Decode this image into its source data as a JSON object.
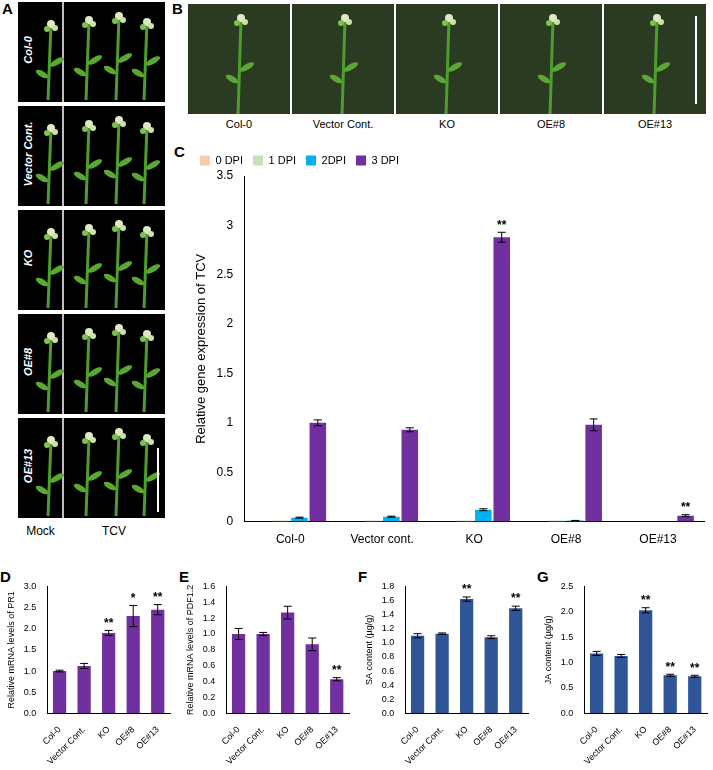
{
  "photo_panels": [
    {
      "panel": "A",
      "rows": [
        "Col-0",
        "Vector Cont.",
        "KO",
        "OE#8",
        "OE#13"
      ],
      "columns": [
        "Mock",
        "TCV"
      ]
    },
    {
      "panel": "B",
      "captions": [
        "Col-0",
        "Vector Cont.",
        "KO",
        "OE#8",
        "OE#13"
      ]
    }
  ],
  "chart_data": [
    {
      "panel": "C",
      "type": "bar",
      "categories": [
        "Col-0",
        "Vector cont.",
        "KO",
        "OE#8",
        "OE#13"
      ],
      "ylabel": "Relative gene expression of TCV",
      "ylim": [
        0,
        3.5
      ],
      "yticks": [
        0,
        0.5,
        1,
        1.5,
        2,
        2.5,
        3,
        3.5
      ],
      "grid": false,
      "legend": "upper left",
      "series": [
        {
          "name": "0 DPI",
          "color": "#f8cbad",
          "values": [
            0,
            0,
            0,
            0,
            0
          ],
          "errors": [
            0,
            0,
            0,
            0,
            0
          ]
        },
        {
          "name": "1 DPI",
          "color": "#c5e0b4",
          "values": [
            0.01,
            0.01,
            0.01,
            0.01,
            0
          ],
          "errors": [
            0,
            0,
            0,
            0,
            0
          ]
        },
        {
          "name": "2DPI",
          "color": "#00b0f0",
          "values": [
            0.04,
            0.05,
            0.12,
            0.01,
            0
          ],
          "errors": [
            0.005,
            0.005,
            0.01,
            0.002,
            0
          ]
        },
        {
          "name": "3 DPI",
          "color": "#7030a0",
          "values": [
            1.0,
            0.93,
            2.88,
            0.98,
            0.06
          ],
          "errors": [
            0.03,
            0.02,
            0.05,
            0.06,
            0.01
          ]
        }
      ],
      "annotations": [
        {
          "series": "3 DPI",
          "category": "KO",
          "text": "**"
        },
        {
          "series": "3 DPI",
          "category": "OE#13",
          "text": "**"
        }
      ]
    },
    {
      "panel": "D",
      "type": "bar",
      "categories": [
        "Col-0",
        "Vector Cont.",
        "KO",
        "OE#8",
        "OE#13"
      ],
      "ylabel": "Relative mRNA levels of PR1",
      "ylim": [
        0,
        3
      ],
      "yticks": [
        {
          "value": 0,
          "label": "0.0"
        },
        0.5,
        {
          "value": 1,
          "label": "1.0"
        },
        1.5,
        {
          "value": 2,
          "label": "2.0"
        },
        2.5,
        {
          "value": 3,
          "label": "3.0"
        }
      ],
      "grid": false,
      "color": "#7030a0",
      "values": [
        1.0,
        1.12,
        1.9,
        2.3,
        2.45
      ],
      "errors": [
        0.02,
        0.06,
        0.06,
        0.25,
        0.12
      ],
      "annotations": [
        {
          "category": "KO",
          "text": "**"
        },
        {
          "category": "OE#8",
          "text": "*"
        },
        {
          "category": "OE#13",
          "text": "**"
        }
      ]
    },
    {
      "panel": "E",
      "type": "bar",
      "categories": [
        "Col-0",
        "Vector Cont.",
        "KO",
        "OE#8",
        "OE#13"
      ],
      "ylabel": "Relative mRNA levels of PDF1.2",
      "ylim": [
        0,
        1.6
      ],
      "yticks": [
        {
          "value": 0,
          "label": "0.0"
        },
        0.2,
        0.4,
        0.6,
        0.8,
        {
          "value": 1,
          "label": "1.0"
        },
        1.2,
        1.4,
        1.6
      ],
      "grid": false,
      "color": "#7030a0",
      "values": [
        1.0,
        1.0,
        1.27,
        0.87,
        0.43
      ],
      "errors": [
        0.07,
        0.02,
        0.08,
        0.08,
        0.02
      ],
      "annotations": [
        {
          "category": "OE#13",
          "text": "**"
        }
      ]
    },
    {
      "panel": "F",
      "type": "bar",
      "categories": [
        "Col-0",
        "Vector Cont.",
        "KO",
        "OE#8",
        "OE#13"
      ],
      "ylabel": "SA content (µg/g)",
      "ylim": [
        0,
        1.8
      ],
      "yticks": [
        {
          "value": 0,
          "label": "0.0"
        },
        0.2,
        0.4,
        0.6,
        0.8,
        {
          "value": 1,
          "label": "1.0"
        },
        1.2,
        1.4,
        1.6,
        1.8
      ],
      "grid": false,
      "color": "#2f5597",
      "values": [
        1.1,
        1.13,
        1.62,
        1.08,
        1.49
      ],
      "errors": [
        0.03,
        0.01,
        0.03,
        0.02,
        0.03
      ],
      "annotations": [
        {
          "category": "KO",
          "text": "**"
        },
        {
          "category": "OE#13",
          "text": "**"
        }
      ]
    },
    {
      "panel": "G",
      "type": "bar",
      "categories": [
        "Col-0",
        "Vector Cont.",
        "KO",
        "OE#8",
        "OE#13"
      ],
      "ylabel": "JA content (µg/g)",
      "ylim": [
        0,
        2.5
      ],
      "yticks": [
        {
          "value": 0,
          "label": "0.0"
        },
        0.5,
        {
          "value": 1,
          "label": "1.0"
        },
        1.5,
        {
          "value": 2,
          "label": "2.0"
        },
        2.5
      ],
      "grid": false,
      "color": "#2f5597",
      "values": [
        1.18,
        1.13,
        2.03,
        0.75,
        0.73
      ],
      "errors": [
        0.04,
        0.03,
        0.05,
        0.02,
        0.02
      ],
      "annotations": [
        {
          "category": "KO",
          "text": "**"
        },
        {
          "category": "OE#8",
          "text": "**"
        },
        {
          "category": "OE#13",
          "text": "**"
        }
      ]
    }
  ]
}
